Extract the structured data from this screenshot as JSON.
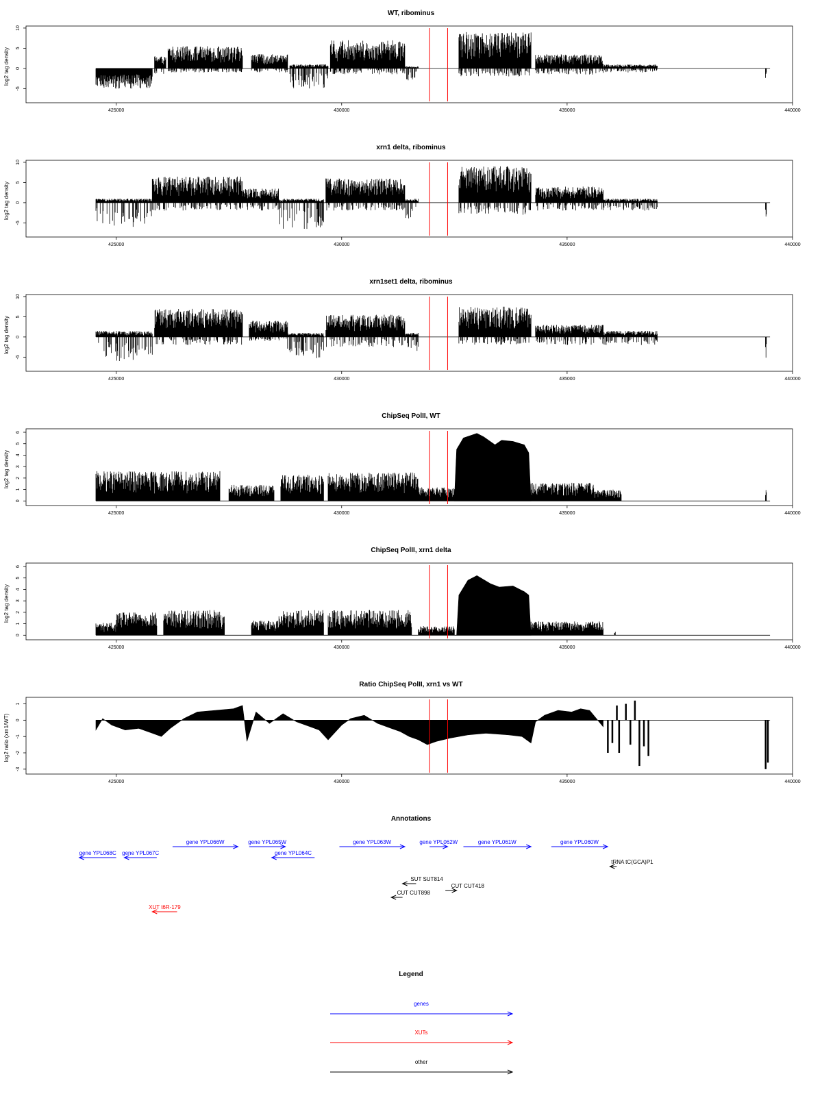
{
  "chart_data": [
    {
      "type": "bar",
      "title": "WT, ribominus",
      "ylabel": "log2 tag density",
      "xlim": [
        423000,
        440000
      ],
      "ylim": [
        -8.5,
        10.5
      ],
      "yticks": [
        -5,
        0,
        5,
        10
      ],
      "xticks": [
        425000,
        430000,
        435000,
        440000
      ],
      "grid": false,
      "marker_lines_x": [
        431950,
        432350
      ],
      "segments": [
        {
          "x": [
            424550,
            425800
          ],
          "pos": 0,
          "neg": 5
        },
        {
          "x": [
            425850,
            426100
          ],
          "pos": 3,
          "neg": 1.5
        },
        {
          "x": [
            426150,
            427800
          ],
          "pos": 5.5,
          "neg": 1
        },
        {
          "x": [
            428000,
            428800
          ],
          "pos": 3.5,
          "neg": 1
        },
        {
          "x": [
            428850,
            429700
          ],
          "pos": 1,
          "neg": 5
        },
        {
          "x": [
            429750,
            431400
          ],
          "pos": 7,
          "neg": 1.5
        },
        {
          "x": [
            431400,
            431700
          ],
          "pos": 0.5,
          "neg": 3
        },
        {
          "x": [
            432600,
            434200
          ],
          "pos": 9,
          "neg": 2
        },
        {
          "x": [
            434300,
            435800
          ],
          "pos": 3.5,
          "neg": 1.5
        },
        {
          "x": [
            435800,
            437000
          ],
          "pos": 1,
          "neg": 1
        },
        {
          "x": [
            439400,
            439420
          ],
          "pos": 0,
          "neg": 2.5
        }
      ]
    },
    {
      "type": "bar",
      "title": "xrn1 delta, ribominus",
      "ylabel": "log2 tag density",
      "xlim": [
        423000,
        440000
      ],
      "ylim": [
        -8.5,
        10.5
      ],
      "yticks": [
        -5,
        0,
        5,
        10
      ],
      "xticks": [
        425000,
        430000,
        435000,
        440000
      ],
      "grid": false,
      "marker_lines_x": [
        431950,
        432350
      ],
      "segments": [
        {
          "x": [
            424550,
            425800
          ],
          "pos": 1,
          "neg": 6
        },
        {
          "x": [
            425800,
            427800
          ],
          "pos": 6.5,
          "neg": 2
        },
        {
          "x": [
            427800,
            428600
          ],
          "pos": 3.5,
          "neg": 2
        },
        {
          "x": [
            428600,
            429600
          ],
          "pos": 1,
          "neg": 6.5
        },
        {
          "x": [
            429650,
            431400
          ],
          "pos": 6,
          "neg": 2
        },
        {
          "x": [
            431400,
            431700
          ],
          "pos": 1,
          "neg": 4
        },
        {
          "x": [
            432600,
            434200
          ],
          "pos": 9,
          "neg": 3
        },
        {
          "x": [
            434300,
            435800
          ],
          "pos": 4,
          "neg": 2
        },
        {
          "x": [
            435800,
            437000
          ],
          "pos": 1,
          "neg": 2
        },
        {
          "x": [
            439400,
            439420
          ],
          "pos": 0,
          "neg": 4
        }
      ]
    },
    {
      "type": "bar",
      "title": "xrn1set1 delta, ribominus",
      "ylabel": "log2 tag density",
      "xlim": [
        423000,
        440000
      ],
      "ylim": [
        -8.5,
        10.5
      ],
      "yticks": [
        -5,
        0,
        5,
        10
      ],
      "xticks": [
        425000,
        430000,
        435000,
        440000
      ],
      "grid": false,
      "marker_lines_x": [
        431950,
        432350
      ],
      "segments": [
        {
          "x": [
            424550,
            425800
          ],
          "pos": 1.5,
          "neg": 6
        },
        {
          "x": [
            425850,
            427800
          ],
          "pos": 7,
          "neg": 2
        },
        {
          "x": [
            427950,
            428800
          ],
          "pos": 4,
          "neg": 1
        },
        {
          "x": [
            428800,
            429600
          ],
          "pos": 1,
          "neg": 5.5
        },
        {
          "x": [
            429650,
            431400
          ],
          "pos": 5.5,
          "neg": 2.5
        },
        {
          "x": [
            431400,
            431700
          ],
          "pos": 1,
          "neg": 3.5
        },
        {
          "x": [
            432600,
            434200
          ],
          "pos": 7.5,
          "neg": 2
        },
        {
          "x": [
            434300,
            435800
          ],
          "pos": 3,
          "neg": 2
        },
        {
          "x": [
            435800,
            437000
          ],
          "pos": 1.5,
          "neg": 2
        },
        {
          "x": [
            439400,
            439420
          ],
          "pos": 0,
          "neg": 5.5
        }
      ]
    },
    {
      "type": "bar",
      "title": "ChipSeq PolII, WT",
      "ylabel": "log2 tag density",
      "xlim": [
        423000,
        440000
      ],
      "ylim": [
        -0.4,
        6.3
      ],
      "yticks": [
        0,
        1,
        2,
        3,
        4,
        5,
        6
      ],
      "xticks": [
        425000,
        430000,
        435000,
        440000
      ],
      "grid": false,
      "marker_lines_x": [
        431950,
        432350
      ],
      "baseline_x": [
        424550,
        439500
      ],
      "segments": [
        {
          "x": [
            424550,
            427300
          ],
          "pos": 2.6,
          "neg": 0
        },
        {
          "x": [
            427500,
            428500
          ],
          "pos": 1.4,
          "neg": 0
        },
        {
          "x": [
            428650,
            429600
          ],
          "pos": 2.3,
          "neg": 0
        },
        {
          "x": [
            429700,
            431700
          ],
          "pos": 2.5,
          "neg": 0
        },
        {
          "x": [
            431700,
            432500
          ],
          "pos": 1.2,
          "neg": 0
        },
        {
          "x": [
            434200,
            435600
          ],
          "pos": 1.6,
          "neg": 0
        },
        {
          "x": [
            435600,
            436200
          ],
          "pos": 1,
          "neg": 0
        },
        {
          "x": [
            439400,
            439420
          ],
          "pos": 1,
          "neg": 0
        }
      ],
      "profile": {
        "x": [
          432500,
          432550,
          432700,
          433000,
          433150,
          433400,
          433550,
          433800,
          434050,
          434150,
          434200
        ],
        "y": [
          0,
          4.5,
          5.5,
          5.9,
          5.6,
          4.9,
          5.3,
          5.2,
          4.9,
          4.2,
          0
        ]
      }
    },
    {
      "type": "bar",
      "title": "ChipSeq PolII, xrn1 delta",
      "ylabel": "log2 tag density",
      "xlim": [
        423000,
        440000
      ],
      "ylim": [
        -0.4,
        6.3
      ],
      "yticks": [
        0,
        1,
        2,
        3,
        4,
        5,
        6
      ],
      "xticks": [
        425000,
        430000,
        435000,
        440000
      ],
      "grid": false,
      "marker_lines_x": [
        431950,
        432350
      ],
      "baseline_x": [
        424550,
        439500
      ],
      "segments": [
        {
          "x": [
            424550,
            425000
          ],
          "pos": 1.1,
          "neg": 0
        },
        {
          "x": [
            425000,
            425900
          ],
          "pos": 2,
          "neg": 0
        },
        {
          "x": [
            426050,
            427400
          ],
          "pos": 2.2,
          "neg": 0
        },
        {
          "x": [
            428000,
            428600
          ],
          "pos": 1.3,
          "neg": 0
        },
        {
          "x": [
            428600,
            429600
          ],
          "pos": 2.2,
          "neg": 0
        },
        {
          "x": [
            429700,
            431550
          ],
          "pos": 2.2,
          "neg": 0
        },
        {
          "x": [
            431700,
            432500
          ],
          "pos": 0.8,
          "neg": 0
        },
        {
          "x": [
            434200,
            435800
          ],
          "pos": 1.2,
          "neg": 0
        },
        {
          "x": [
            436050,
            436070
          ],
          "pos": 0.3,
          "neg": 0
        }
      ],
      "profile": {
        "x": [
          432550,
          432600,
          432800,
          433000,
          433300,
          433500,
          433800,
          434050,
          434150,
          434200
        ],
        "y": [
          0,
          3.5,
          4.8,
          5.2,
          4.5,
          4.2,
          4.3,
          3.8,
          3.5,
          0
        ]
      }
    },
    {
      "type": "area",
      "title": "Ratio ChipSeq PolII, xrn1 vs WT",
      "ylabel": "log2 ratio (xrn1/WT)",
      "xlim": [
        423000,
        440000
      ],
      "ylim": [
        -3.3,
        1.4
      ],
      "yticks": [
        -3,
        -2,
        -1,
        0,
        1
      ],
      "xticks": [
        425000,
        430000,
        435000,
        440000
      ],
      "grid": false,
      "marker_lines_x": [
        431950,
        432350
      ],
      "baseline_x": [
        424550,
        439500
      ],
      "profile": {
        "x": [
          424550,
          424700,
          424900,
          425200,
          425500,
          425800,
          426000,
          426200,
          426500,
          426800,
          427200,
          427600,
          427800,
          427900,
          428000,
          428100,
          428400,
          428700,
          429000,
          429300,
          429500,
          429700,
          430000,
          430200,
          430500,
          430800,
          431100,
          431300,
          431500,
          431700,
          431900,
          432100,
          432400,
          432800,
          433200,
          433700,
          434000,
          434200,
          434300,
          434500,
          434800,
          435100,
          435300,
          435500,
          435800
        ],
        "y": [
          -0.6,
          0.1,
          -0.3,
          -0.6,
          -0.5,
          -0.8,
          -1.0,
          -0.5,
          0.1,
          0.5,
          0.6,
          0.7,
          0.9,
          -1.3,
          -0.4,
          0.5,
          -0.2,
          0.4,
          -0.1,
          -0.4,
          -0.6,
          -1.2,
          -0.3,
          0.1,
          0.3,
          -0.2,
          -0.5,
          -0.7,
          -1.0,
          -1.2,
          -1.5,
          -1.3,
          -1.1,
          -0.9,
          -0.8,
          -0.9,
          -1.0,
          -1.4,
          -0.1,
          0.3,
          0.6,
          0.5,
          0.7,
          0.6,
          -0.4
        ]
      },
      "spikes": [
        {
          "x": 435900,
          "y": -2.0
        },
        {
          "x": 436000,
          "y": -1.4
        },
        {
          "x": 436100,
          "y": 0.9
        },
        {
          "x": 436150,
          "y": -2.0
        },
        {
          "x": 436300,
          "y": 1.0
        },
        {
          "x": 436400,
          "y": -1.5
        },
        {
          "x": 436500,
          "y": 1.2
        },
        {
          "x": 436600,
          "y": -2.8
        },
        {
          "x": 436700,
          "y": -1.6
        },
        {
          "x": 436800,
          "y": -2.2
        },
        {
          "x": 439400,
          "y": -3.0
        },
        {
          "x": 439450,
          "y": -2.6
        }
      ]
    }
  ],
  "annotations": {
    "title": "Annotations",
    "items": [
      {
        "label": "gene YPL068C",
        "x_from": 425000,
        "x_to": 424180,
        "row": 1,
        "kind": "gene"
      },
      {
        "label": "gene YPL067C",
        "x_from": 425900,
        "x_to": 425180,
        "row": 1,
        "kind": "gene"
      },
      {
        "label": "gene YPL066W",
        "x_from": 426250,
        "x_to": 427700,
        "row": 0,
        "kind": "gene"
      },
      {
        "label": "gene YPL065W",
        "x_from": 427950,
        "x_to": 428750,
        "row": 0,
        "kind": "gene"
      },
      {
        "label": "gene YPL064C",
        "x_from": 429400,
        "x_to": 428450,
        "row": 1,
        "kind": "gene"
      },
      {
        "label": "gene YPL063W",
        "x_from": 429950,
        "x_to": 431400,
        "row": 0,
        "kind": "gene"
      },
      {
        "label": "gene YPL062W",
        "x_from": 431950,
        "x_to": 432350,
        "row": 0,
        "kind": "gene"
      },
      {
        "label": "gene YPL061W",
        "x_from": 432700,
        "x_to": 434200,
        "row": 0,
        "kind": "gene"
      },
      {
        "label": "gene YPL060W",
        "x_from": 434650,
        "x_to": 435900,
        "row": 0,
        "kind": "gene"
      },
      {
        "label": "tRNA tC(GCA)P1",
        "x_from": 436100,
        "x_to": 435950,
        "row": 2,
        "kind": "other"
      },
      {
        "label": "SUT SUT814",
        "x_from": 431650,
        "x_to": 431350,
        "row": 3,
        "kind": "other"
      },
      {
        "label": "CUT CUT418",
        "x_from": 432300,
        "x_to": 432550,
        "row": 4,
        "kind": "other"
      },
      {
        "label": "CUT CUT898",
        "x_from": 431350,
        "x_to": 431100,
        "row": 5,
        "kind": "other"
      },
      {
        "label": "XUT t6R-179",
        "x_from": 426350,
        "x_to": 425800,
        "row": 6,
        "kind": "xut"
      }
    ]
  },
  "legend": {
    "title": "Legend",
    "entries": [
      {
        "label": "genes",
        "color": "#0000ff"
      },
      {
        "label": "XUTs",
        "color": "#ff0000"
      },
      {
        "label": "other",
        "color": "#000000"
      }
    ]
  },
  "colors": {
    "bars": "#000000",
    "marker_lines": "#ff0000",
    "gene": "#0000ff",
    "xut": "#ff0000",
    "other": "#000000"
  }
}
